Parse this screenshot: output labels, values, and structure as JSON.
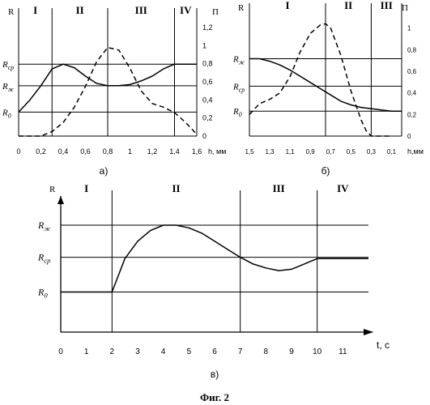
{
  "figure_caption": "Фиг. 2",
  "chart_data": [
    {
      "id": "a",
      "panel_label": "а)",
      "type": "line",
      "xlabel": "h, мм",
      "x_ticks": [
        "0",
        "0,2",
        "0,4",
        "0,6",
        "0,8",
        "1",
        "1,2",
        "1,4",
        "1,6"
      ],
      "xlim": [
        0,
        1.6
      ],
      "left_axis_label": "R",
      "left_ticks": [
        "R_ср",
        "R_ж",
        "R_0"
      ],
      "right_axis_label": "П",
      "right_ticks": [
        "0",
        "0,2",
        "0,4",
        "0,6",
        "0,8",
        "1",
        "1,2"
      ],
      "ylim_right": [
        0,
        1.2
      ],
      "zones": [
        "I",
        "II",
        "III",
        "IV"
      ],
      "zone_boundaries": [
        0.3,
        0.8,
        1.4
      ],
      "reference_levels": [
        0.6,
        0.42,
        0.2
      ],
      "series": [
        {
          "style": "solid",
          "x": [
            0,
            0.1,
            0.2,
            0.3,
            0.4,
            0.5,
            0.6,
            0.7,
            0.8,
            0.9,
            1.0,
            1.1,
            1.2,
            1.3,
            1.4,
            1.5,
            1.6
          ],
          "y": [
            0.2,
            0.3,
            0.42,
            0.56,
            0.6,
            0.57,
            0.5,
            0.44,
            0.42,
            0.42,
            0.43,
            0.46,
            0.5,
            0.56,
            0.6,
            0.6,
            0.6
          ]
        },
        {
          "style": "dashed",
          "x": [
            0,
            0.1,
            0.2,
            0.3,
            0.4,
            0.5,
            0.6,
            0.7,
            0.8,
            0.9,
            1.0,
            1.1,
            1.2,
            1.3,
            1.4,
            1.5,
            1.6
          ],
          "y": [
            0,
            0,
            0,
            0.05,
            0.15,
            0.32,
            0.55,
            0.82,
            0.98,
            0.95,
            0.75,
            0.5,
            0.36,
            0.32,
            0.26,
            0.15,
            0.02
          ]
        }
      ]
    },
    {
      "id": "b",
      "panel_label": "б)",
      "type": "line",
      "xlabel": "h,мм",
      "x_ticks": [
        "1,5",
        "1,3",
        "1,1",
        "0,9",
        "0,7",
        "0,5",
        "0,3",
        "0,1"
      ],
      "xlim": [
        1.5,
        0
      ],
      "left_axis_label": "R",
      "left_ticks": [
        "R_ж",
        "R_ср",
        "R_0"
      ],
      "right_axis_label": "П",
      "right_ticks": [
        "0",
        "0,2",
        "0,4",
        "0,6",
        "0,8",
        "1"
      ],
      "ylim_right": [
        0,
        1.05
      ],
      "zones": [
        "I",
        "II",
        "III"
      ],
      "zone_boundaries": [
        0.75,
        0.3
      ],
      "reference_levels": [
        0.62,
        0.4,
        0.2
      ],
      "series": [
        {
          "style": "solid",
          "x": [
            1.5,
            1.4,
            1.3,
            1.2,
            1.1,
            1.0,
            0.9,
            0.8,
            0.7,
            0.6,
            0.5,
            0.4,
            0.3,
            0.2,
            0.1,
            0.0
          ],
          "y": [
            0.62,
            0.62,
            0.6,
            0.57,
            0.53,
            0.48,
            0.43,
            0.38,
            0.33,
            0.28,
            0.25,
            0.23,
            0.22,
            0.21,
            0.2,
            0.2
          ]
        },
        {
          "style": "dashed",
          "x": [
            1.5,
            1.4,
            1.3,
            1.2,
            1.1,
            1.0,
            0.9,
            0.8,
            0.75,
            0.7,
            0.6,
            0.5,
            0.4,
            0.35,
            0.3,
            0.2,
            0.1
          ],
          "y": [
            0.2,
            0.3,
            0.34,
            0.4,
            0.55,
            0.78,
            0.95,
            1.03,
            1.04,
            1.0,
            0.75,
            0.42,
            0.15,
            0.05,
            0.0,
            0.0,
            0.0
          ]
        }
      ]
    },
    {
      "id": "c",
      "panel_label": "в)",
      "type": "line",
      "xlabel": "t, с",
      "x_ticks": [
        "0",
        "1",
        "2",
        "3",
        "4",
        "5",
        "6",
        "7",
        "8",
        "9",
        "10",
        "11"
      ],
      "xlim": [
        0,
        12
      ],
      "left_axis_label": "R",
      "left_ticks": [
        "R_ж",
        "R_ср",
        "R_0"
      ],
      "zones": [
        "I",
        "II",
        "III",
        "IV"
      ],
      "zone_boundaries": [
        2,
        7,
        10
      ],
      "reference_levels": [
        0.8,
        0.56,
        0.3
      ],
      "series": [
        {
          "style": "solid",
          "x": [
            0,
            2,
            2.5,
            3,
            3.5,
            4,
            4.5,
            5,
            5.5,
            6,
            6.5,
            7,
            7.5,
            8,
            8.5,
            9,
            9.5,
            10,
            11,
            12
          ],
          "y": [
            0.3,
            0.3,
            0.55,
            0.68,
            0.76,
            0.8,
            0.8,
            0.78,
            0.74,
            0.68,
            0.62,
            0.56,
            0.51,
            0.48,
            0.46,
            0.47,
            0.51,
            0.55,
            0.55,
            0.55
          ]
        }
      ]
    }
  ]
}
